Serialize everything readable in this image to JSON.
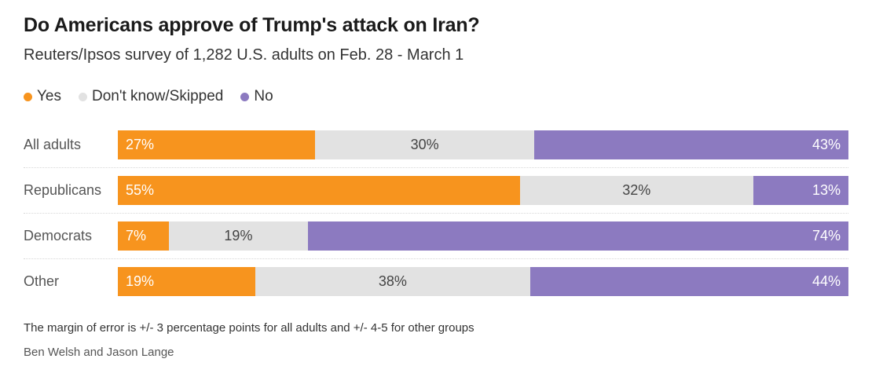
{
  "header": {
    "title": "Do Americans approve of Trump's attack on Iran?",
    "subtitle": "Reuters/Ipsos survey of 1,282 U.S. adults on Feb. 28 - March 1"
  },
  "footer": {
    "note": "The margin of error is +/- 3 percentage points for all adults and +/- 4-5 for other groups",
    "byline": "Ben Welsh and Jason Lange"
  },
  "chart_data": {
    "type": "bar",
    "stacked": true,
    "orientation": "horizontal",
    "title": "Do Americans approve of Trump's attack on Iran?",
    "subtitle": "Reuters/Ipsos survey of 1,282 U.S. adults on Feb. 28 - March 1",
    "legend_position": "top",
    "value_suffix": "%",
    "categories": [
      "All adults",
      "Republicans",
      "Democrats",
      "Other"
    ],
    "series": [
      {
        "name": "Yes",
        "color": "#f7941e",
        "label_color": "#ffffff",
        "values": [
          27,
          55,
          7,
          19
        ]
      },
      {
        "name": "Don't know/Skipped",
        "color": "#e2e2e2",
        "label_color": "#444444",
        "values": [
          30,
          32,
          19,
          38
        ]
      },
      {
        "name": "No",
        "color": "#8c7ac0",
        "label_color": "#ffffff",
        "values": [
          43,
          13,
          74,
          44
        ]
      }
    ]
  }
}
